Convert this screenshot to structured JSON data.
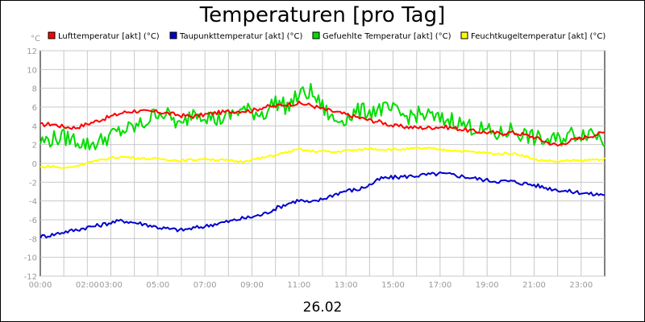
{
  "chart_data": {
    "type": "line",
    "title": "Temperaturen [pro Tag]",
    "ylabel": "°C",
    "xlabel": "26.02",
    "ylim": [
      -12,
      12
    ],
    "yticks": [
      12,
      10,
      8,
      6,
      4,
      2,
      0,
      -2,
      -4,
      -6,
      -8,
      -10,
      -12
    ],
    "xlim": [
      0,
      24
    ],
    "xticks": [
      {
        "label": "00:00",
        "x": 0
      },
      {
        "label": "02:00",
        "x": 2
      },
      {
        "label": "03:00",
        "x": 3
      },
      {
        "label": "05:00",
        "x": 5
      },
      {
        "label": "07:00",
        "x": 7
      },
      {
        "label": "09:00",
        "x": 9
      },
      {
        "label": "11:00",
        "x": 11
      },
      {
        "label": "13:00",
        "x": 13
      },
      {
        "label": "15:00",
        "x": 15
      },
      {
        "label": "17:00",
        "x": 17
      },
      {
        "label": "19:00",
        "x": 19
      },
      {
        "label": "21:00",
        "x": 21
      },
      {
        "label": "23:00",
        "x": 23
      }
    ],
    "grid": true,
    "legend_position": "top",
    "series": [
      {
        "name": "Lufttemperatur [akt] (°C)",
        "color": "#ff0000",
        "x": [
          0,
          0.5,
          1,
          1.5,
          2,
          2.5,
          3,
          3.5,
          4,
          4.5,
          5,
          5.5,
          6,
          6.5,
          7,
          7.5,
          8,
          8.5,
          9,
          9.5,
          10,
          10.5,
          11,
          11.5,
          12,
          12.5,
          13,
          13.5,
          14,
          14.5,
          15,
          15.5,
          16,
          16.5,
          17,
          17.5,
          18,
          18.5,
          19,
          19.5,
          20,
          20.5,
          21,
          21.5,
          22,
          22.5,
          23,
          23.5,
          24
        ],
        "y": [
          4.1,
          4.2,
          3.9,
          3.8,
          4.2,
          4.6,
          5.0,
          5.4,
          5.6,
          5.5,
          5.5,
          5.3,
          5.1,
          5.0,
          5.2,
          5.4,
          5.5,
          5.6,
          5.6,
          6.0,
          6.1,
          6.3,
          6.4,
          6.2,
          5.8,
          5.5,
          5.2,
          4.9,
          4.6,
          4.4,
          4.0,
          3.9,
          3.8,
          3.8,
          3.9,
          3.8,
          3.6,
          3.4,
          3.3,
          3.2,
          3.3,
          3.1,
          2.8,
          2.3,
          1.9,
          2.4,
          2.7,
          3.0,
          3.3
        ]
      },
      {
        "name": "Taupunkttemperatur [akt] (°C)",
        "color": "#0000cc",
        "x": [
          0,
          0.5,
          1,
          1.5,
          2,
          2.5,
          3,
          3.5,
          4,
          4.5,
          5,
          5.5,
          6,
          6.5,
          7,
          7.5,
          8,
          8.5,
          9,
          9.5,
          10,
          10.5,
          11,
          11.5,
          12,
          12.5,
          13,
          13.5,
          14,
          14.5,
          15,
          15.5,
          16,
          16.5,
          17,
          17.5,
          18,
          18.5,
          19,
          19.5,
          20,
          20.5,
          21,
          21.5,
          22,
          22.5,
          23,
          23.5,
          24
        ],
        "y": [
          -7.8,
          -7.6,
          -7.3,
          -7.1,
          -6.8,
          -6.6,
          -6.3,
          -6.1,
          -6.3,
          -6.5,
          -6.8,
          -7.0,
          -7.1,
          -6.9,
          -6.7,
          -6.4,
          -6.2,
          -5.9,
          -5.7,
          -5.4,
          -4.8,
          -4.3,
          -3.9,
          -4.2,
          -3.8,
          -3.3,
          -2.9,
          -2.8,
          -2.3,
          -1.6,
          -1.5,
          -1.4,
          -1.3,
          -1.2,
          -1.1,
          -1.2,
          -1.4,
          -1.6,
          -1.8,
          -1.9,
          -1.9,
          -2.1,
          -2.3,
          -2.6,
          -2.8,
          -3.0,
          -3.1,
          -3.3,
          -3.3
        ]
      },
      {
        "name": "Gefuehlte Temperatur [akt] (°C)",
        "color": "#00dd00",
        "x": [
          0,
          0.5,
          1,
          1.5,
          2,
          2.5,
          3,
          3.5,
          4,
          4.5,
          5,
          5.5,
          6,
          6.5,
          7,
          7.5,
          8,
          8.5,
          9,
          9.5,
          10,
          10.5,
          11,
          11.5,
          12,
          12.5,
          13,
          13.5,
          14,
          14.5,
          15,
          15.5,
          16,
          16.5,
          17,
          17.5,
          18,
          18.5,
          19,
          19.5,
          20,
          20.5,
          21,
          21.5,
          22,
          22.5,
          23,
          23.5,
          24
        ],
        "y": [
          2.3,
          2.6,
          2.8,
          2.5,
          2.0,
          2.3,
          3.0,
          3.5,
          3.8,
          4.4,
          5.6,
          5.0,
          3.8,
          5.7,
          5.2,
          4.6,
          5.0,
          5.7,
          5.5,
          5.3,
          6.6,
          6.0,
          7.3,
          7.6,
          6.0,
          4.5,
          4.9,
          5.5,
          5.6,
          5.8,
          5.6,
          5.0,
          5.2,
          5.1,
          4.6,
          4.7,
          4.1,
          3.8,
          3.4,
          3.0,
          3.6,
          3.1,
          2.7,
          2.4,
          2.5,
          3.1,
          3.2,
          3.4,
          2.4
        ]
      },
      {
        "name": "Feuchtkugeltemperatur [akt] (°C)",
        "color": "#ffff00",
        "x": [
          0,
          0.5,
          1,
          1.5,
          2,
          2.5,
          3,
          3.5,
          4,
          4.5,
          5,
          5.5,
          6,
          6.5,
          7,
          7.5,
          8,
          8.5,
          9,
          9.5,
          10,
          10.5,
          11,
          11.5,
          12,
          12.5,
          13,
          13.5,
          14,
          14.5,
          15,
          15.5,
          16,
          16.5,
          17,
          17.5,
          18,
          18.5,
          19,
          19.5,
          20,
          20.5,
          21,
          21.5,
          22,
          22.5,
          23,
          23.5,
          24
        ],
        "y": [
          -0.4,
          -0.3,
          -0.5,
          -0.3,
          0.1,
          0.3,
          0.6,
          0.7,
          0.6,
          0.5,
          0.5,
          0.4,
          0.3,
          0.4,
          0.5,
          0.4,
          0.3,
          0.2,
          0.4,
          0.6,
          0.9,
          1.2,
          1.5,
          1.3,
          1.3,
          1.2,
          1.4,
          1.4,
          1.6,
          1.5,
          1.5,
          1.5,
          1.6,
          1.6,
          1.5,
          1.4,
          1.3,
          1.2,
          1.1,
          1.0,
          1.1,
          0.9,
          0.4,
          0.3,
          0.2,
          0.3,
          0.3,
          0.4,
          0.5
        ]
      }
    ]
  }
}
